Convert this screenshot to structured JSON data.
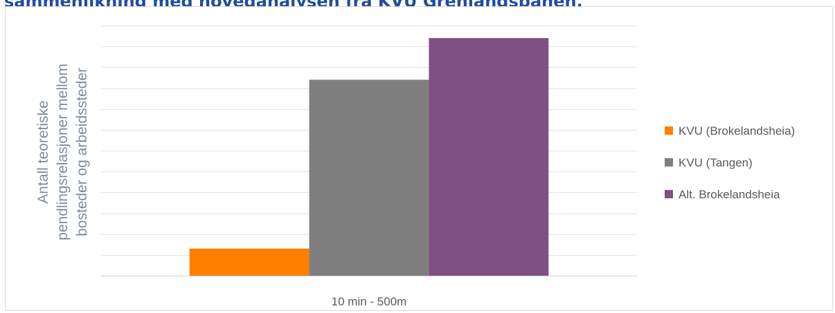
{
  "heading": "sammenlikning med hovedanalysen fra KVU Grenlandsbanen.",
  "chart_data": {
    "type": "bar",
    "categories": [
      "10 min - 500m"
    ],
    "series": [
      {
        "name": "KVU (Brokelandsheia)",
        "values": [
          1.3
        ],
        "color": "#ff7f00"
      },
      {
        "name": "KVU (Tangen)",
        "values": [
          9.4
        ],
        "color": "#7f7f7f"
      },
      {
        "name": "Alt. Brokelandsheia",
        "values": [
          11.4
        ],
        "color": "#7f5082"
      }
    ],
    "ylabel_lines": [
      "Antall teoretiske",
      "pendlingsrelasjoner mellom",
      "bosteder og arbeidssteder"
    ],
    "xlabel": "",
    "ylim": [
      0,
      12
    ],
    "gridlines": 12,
    "grid": true,
    "y_tick_labels": false,
    "legend": "right"
  }
}
